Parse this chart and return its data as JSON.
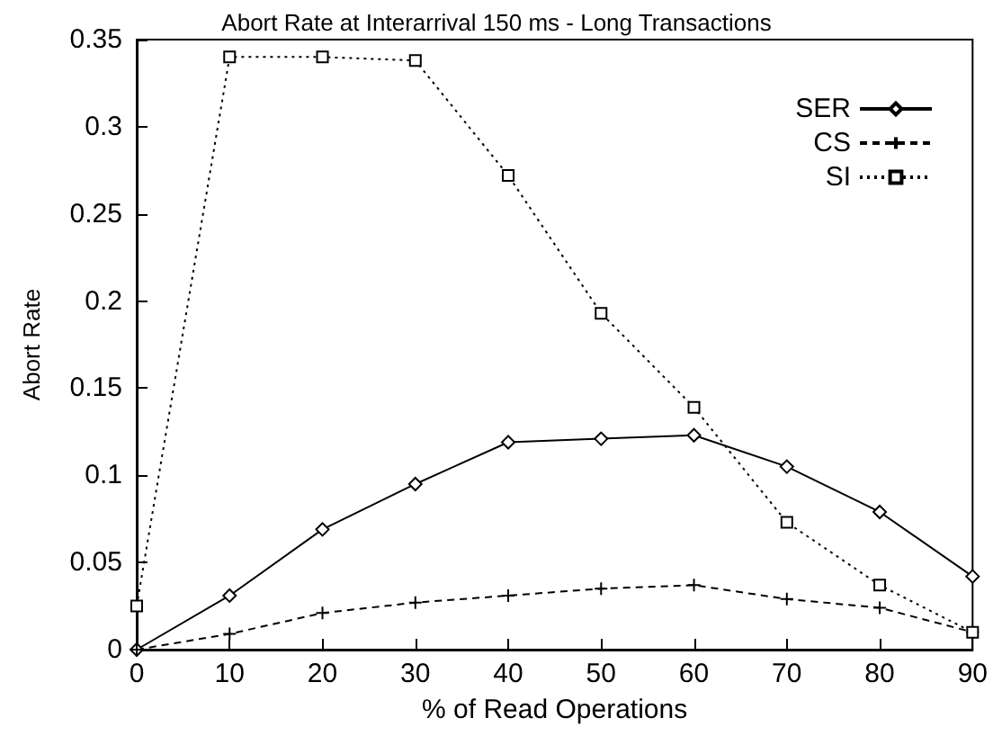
{
  "chart_data": {
    "type": "line",
    "title": "Abort Rate at Interarrival 150 ms - Long Transactions",
    "xlabel": "% of Read Operations",
    "ylabel": "Abort Rate",
    "x": [
      0,
      10,
      20,
      30,
      40,
      50,
      60,
      70,
      80,
      90
    ],
    "series": [
      {
        "name": "SER",
        "color": "#000000",
        "marker": "diamond",
        "line_style": "solid",
        "values": [
          0,
          0.031,
          0.069,
          0.095,
          0.119,
          0.121,
          0.123,
          0.105,
          0.079,
          0.042
        ]
      },
      {
        "name": "CS",
        "color": "#000000",
        "marker": "cross",
        "line_style": "dashed",
        "values": [
          0,
          0.009,
          0.021,
          0.027,
          0.031,
          0.035,
          0.037,
          0.029,
          0.024,
          0.01
        ]
      },
      {
        "name": "SI",
        "color": "#000000",
        "marker": "square",
        "line_style": "dotted",
        "values": [
          0.025,
          0.34,
          0.34,
          0.338,
          0.272,
          0.193,
          0.139,
          0.073,
          0.037,
          0.01
        ]
      }
    ],
    "xlim": [
      0,
      90
    ],
    "xticks": [
      0,
      10,
      20,
      30,
      40,
      50,
      60,
      70,
      80,
      90
    ],
    "ylim": [
      0,
      0.35
    ],
    "yticks": [
      0,
      0.05,
      0.1,
      0.15,
      0.2,
      0.25,
      0.3,
      0.35
    ],
    "grid": false,
    "legend": "top right"
  }
}
